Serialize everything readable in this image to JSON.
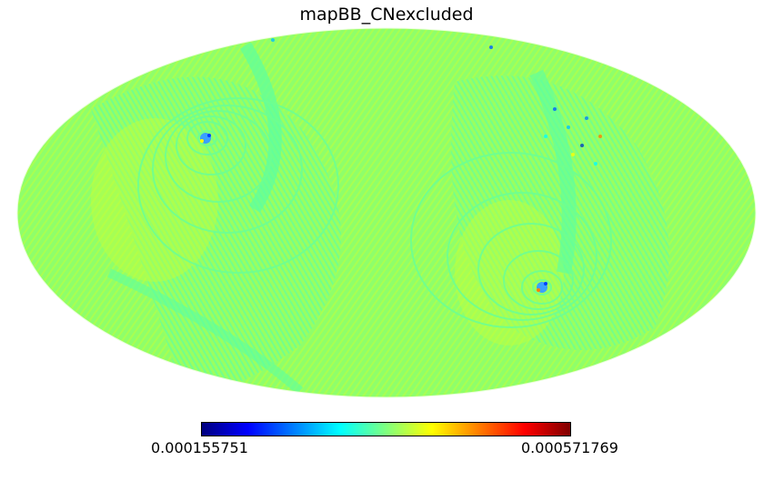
{
  "title": "mapBB_CNexcluded",
  "colormap": {
    "name": "jet",
    "stops": [
      "#00007f",
      "#0000ff",
      "#007fff",
      "#00ffff",
      "#7fff7f",
      "#ffff00",
      "#ff7f00",
      "#ff0000",
      "#7f0000"
    ]
  },
  "colorbar": {
    "min_label": "0.000155751",
    "max_label": "0.000571769"
  },
  "map": {
    "projection": "mollweide",
    "dominant_color": "#8fff6a",
    "secondary_colors": [
      "#5dffa0",
      "#c4ff3a",
      "#b8ff40"
    ]
  }
}
